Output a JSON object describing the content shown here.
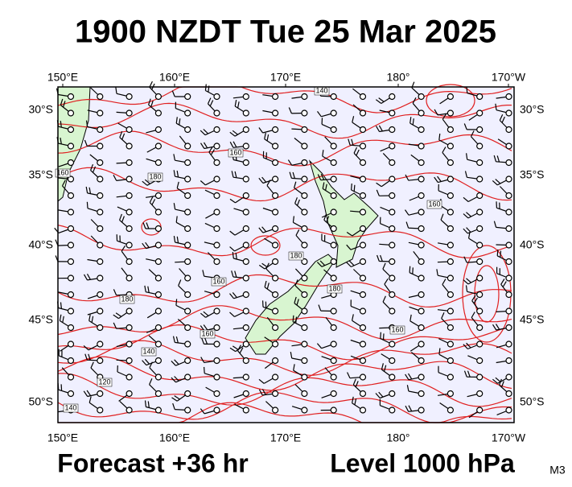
{
  "header": {
    "title": "1900 NZDT Tue 25 Mar 2025"
  },
  "map": {
    "longitude_labels": [
      "150°E",
      "160°E",
      "170°E",
      "180°",
      "170°W"
    ],
    "latitude_labels": [
      "30°S",
      "35°S",
      "40°S",
      "45°S",
      "50°S"
    ],
    "contour_labels": [
      "140",
      "160",
      "160",
      "180",
      "180",
      "160",
      "160",
      "140",
      "120",
      "140",
      "180",
      "180",
      "160",
      "160"
    ]
  },
  "footer": {
    "forecast": "Forecast +36 hr",
    "level": "Level 1000 hPa",
    "code": "M3"
  }
}
